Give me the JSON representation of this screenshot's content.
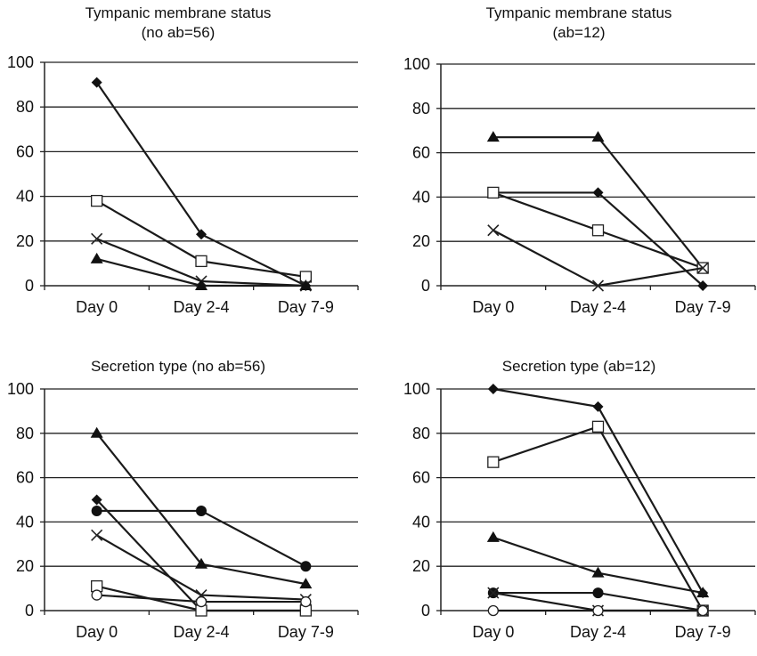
{
  "chart_data": [
    {
      "type": "line",
      "title": [
        "Tympanic membrane status",
        "(no ab=56)"
      ],
      "categories": [
        "Day 0",
        "Day 2-4",
        "Day 7-9"
      ],
      "ylim": [
        0,
        100
      ],
      "yticks": [
        "0",
        "20",
        "40",
        "60",
        "80",
        "100"
      ],
      "grid": true,
      "series": [
        {
          "marker": "diamond",
          "values": [
            91,
            23,
            0
          ]
        },
        {
          "marker": "square-open",
          "values": [
            38,
            11,
            4
          ]
        },
        {
          "marker": "x",
          "values": [
            21,
            2,
            0
          ]
        },
        {
          "marker": "triangle",
          "values": [
            12,
            0,
            0
          ]
        }
      ]
    },
    {
      "type": "line",
      "title": [
        "Tympanic membrane status",
        "(ab=12)"
      ],
      "categories": [
        "Day 0",
        "Day 2-4",
        "Day 7-9"
      ],
      "ylim": [
        0,
        100
      ],
      "yticks": [
        "0",
        "20",
        "40",
        "60",
        "80",
        "100"
      ],
      "grid": true,
      "series": [
        {
          "marker": "triangle",
          "values": [
            67,
            67,
            8
          ]
        },
        {
          "marker": "diamond",
          "values": [
            42,
            42,
            0
          ]
        },
        {
          "marker": "square-open",
          "values": [
            42,
            25,
            8
          ]
        },
        {
          "marker": "x",
          "values": [
            25,
            0,
            8
          ]
        }
      ]
    },
    {
      "type": "line",
      "title": [
        "Secretion type (no ab=56)"
      ],
      "categories": [
        "Day 0",
        "Day 2-4",
        "Day 7-9"
      ],
      "ylim": [
        0,
        100
      ],
      "yticks": [
        "0",
        "20",
        "40",
        "60",
        "80",
        "100"
      ],
      "grid": true,
      "series": [
        {
          "marker": "triangle",
          "values": [
            80,
            21,
            12
          ]
        },
        {
          "marker": "diamond",
          "values": [
            50,
            0,
            0
          ]
        },
        {
          "marker": "circle",
          "values": [
            45,
            45,
            20
          ]
        },
        {
          "marker": "x",
          "values": [
            34,
            7,
            5
          ]
        },
        {
          "marker": "square-open",
          "values": [
            11,
            0,
            0
          ]
        },
        {
          "marker": "circle-open",
          "values": [
            7,
            4,
            4
          ]
        }
      ]
    },
    {
      "type": "line",
      "title": [
        "Secretion type (ab=12)"
      ],
      "categories": [
        "Day 0",
        "Day 2-4",
        "Day 7-9"
      ],
      "ylim": [
        0,
        100
      ],
      "yticks": [
        "0",
        "20",
        "40",
        "60",
        "80",
        "100"
      ],
      "grid": true,
      "series": [
        {
          "marker": "diamond",
          "values": [
            100,
            92,
            8
          ]
        },
        {
          "marker": "square-open",
          "values": [
            67,
            83,
            0
          ]
        },
        {
          "marker": "triangle",
          "values": [
            33,
            17,
            8
          ]
        },
        {
          "marker": "circle",
          "values": [
            8,
            8,
            0
          ]
        },
        {
          "marker": "x",
          "values": [
            8,
            0,
            0
          ]
        },
        {
          "marker": "circle-open",
          "values": [
            0,
            0,
            0
          ]
        }
      ]
    }
  ]
}
